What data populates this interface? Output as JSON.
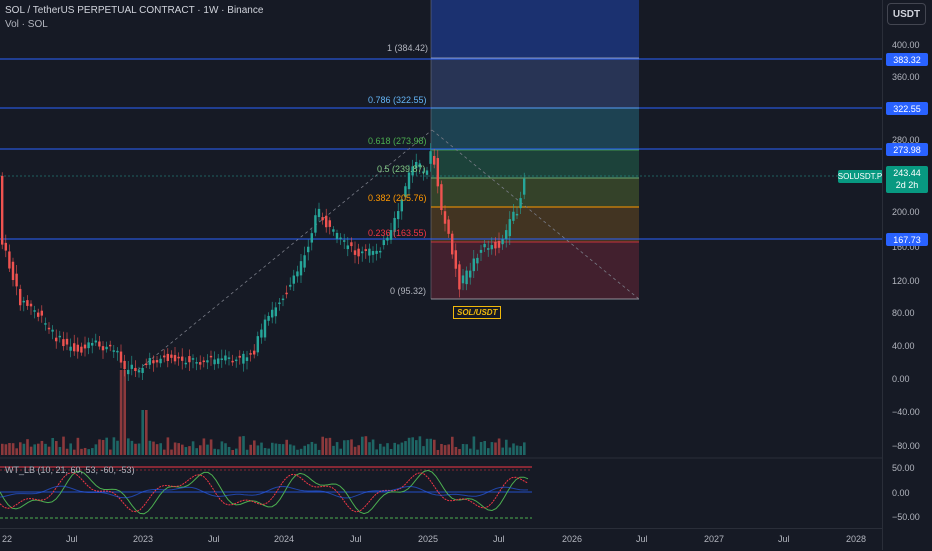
{
  "header": {
    "title": "SOL / TetherUS PERPETUAL CONTRACT · 1W · Binance",
    "volume_label": "Vol · SOL",
    "currency_button": "USDT"
  },
  "symbol_flag": "SOL/USDT",
  "symbol_tag": "SOLUSDT.P",
  "last_price": {
    "value": "243.44",
    "countdown": "2d 2h"
  },
  "fib_levels": [
    {
      "label": "1 (384.42)",
      "color": "#b2b5be"
    },
    {
      "label": "0.786 (322.55)",
      "color": "#64b5f6"
    },
    {
      "label": "0.618 (273.98)",
      "color": "#4caf50"
    },
    {
      "label": "0.5 (239.87)",
      "color": "#81c784"
    },
    {
      "label": "0.382 (205.76)",
      "color": "#ff9800"
    },
    {
      "label": "0.236 (163.55)",
      "color": "#f23645"
    },
    {
      "label": "0 (95.32)",
      "color": "#b2b5be"
    }
  ],
  "price_tags": [
    {
      "value": "383.32",
      "color": "#2962ff"
    },
    {
      "value": "322.55",
      "color": "#2962ff"
    },
    {
      "value": "273.98",
      "color": "#2962ff"
    },
    {
      "value": "167.73",
      "color": "#2962ff"
    }
  ],
  "price_axis": [
    "400.00",
    "360.00",
    "280.00",
    "200.00",
    "160.00",
    "120.00",
    "80.00",
    "40.00",
    "0.00",
    "−40.00",
    "−80.00"
  ],
  "osc_axis": [
    "50.00",
    "0.00",
    "−50.00"
  ],
  "date_axis": [
    "22",
    "Jul",
    "2023",
    "Jul",
    "2024",
    "Jul",
    "2025",
    "Jul",
    "2026",
    "Jul",
    "2027",
    "Jul",
    "2028"
  ],
  "indicator_label": "WT_LB (10, 21, 60, 53, -60, -53)",
  "colors": {
    "bg": "#161a25",
    "up": "#26a69a",
    "down": "#ef5350",
    "hline": "#2962ff"
  }
}
